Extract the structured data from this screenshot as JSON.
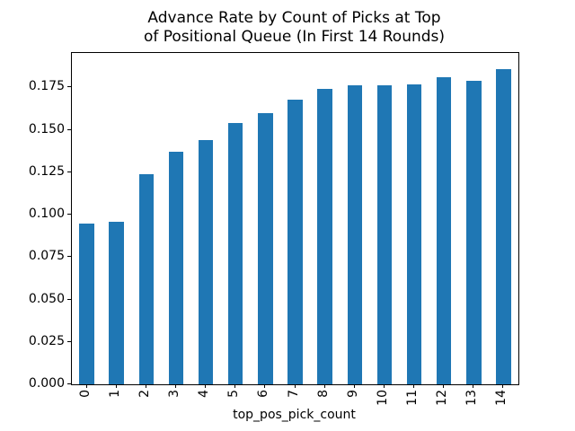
{
  "chart_data": {
    "type": "bar",
    "title": "Advance Rate by Count of Picks at Top\nof Positional Queue (In First 14 Rounds)",
    "xlabel": "top_pos_pick_count",
    "ylabel": "",
    "categories": [
      "0",
      "1",
      "2",
      "3",
      "4",
      "5",
      "6",
      "7",
      "8",
      "9",
      "10",
      "11",
      "12",
      "13",
      "14"
    ],
    "values": [
      0.095,
      0.096,
      0.124,
      0.137,
      0.144,
      0.154,
      0.16,
      0.168,
      0.174,
      0.176,
      0.176,
      0.177,
      0.181,
      0.179,
      0.186
    ],
    "ytick_labels": [
      "0.000",
      "0.025",
      "0.050",
      "0.075",
      "0.100",
      "0.125",
      "0.150",
      "0.175"
    ],
    "ytick_values": [
      0.0,
      0.025,
      0.05,
      0.075,
      0.1,
      0.125,
      0.15,
      0.175
    ],
    "ylim": [
      0,
      0.1953
    ],
    "xtick_rotation_deg": 90,
    "bar_color": "#1f77b4",
    "grid": false,
    "legend_position": "none",
    "background_color": "#ffffff",
    "spine_color": "#000000"
  }
}
